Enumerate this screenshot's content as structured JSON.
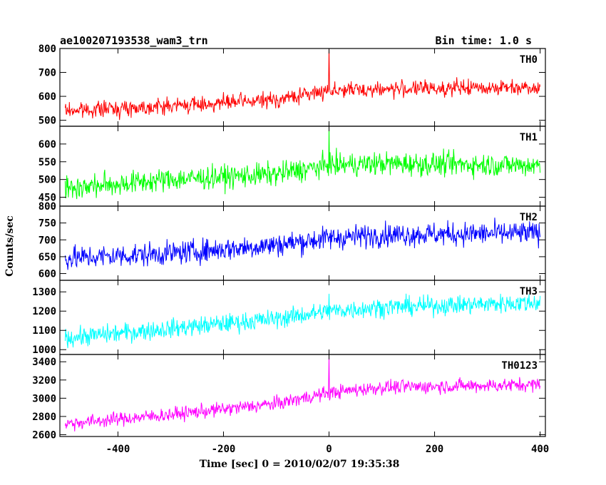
{
  "header": {
    "title": "ae100207193538_wam3_trn",
    "bin_time": "Bin time: 1.0 s"
  },
  "chart_data": {
    "type": "line",
    "xlabel": "Time [sec] 0 = 2010/02/07 19:35:38",
    "ylabel": "Counts/sec",
    "xlim": [
      -510,
      410
    ],
    "xticks": [
      -400,
      -200,
      0,
      200,
      400
    ],
    "x_range": [
      -500,
      400
    ],
    "bin": 1.0,
    "grid": false,
    "panels": [
      {
        "name": "TH0",
        "color": "#ff0000",
        "ylim": [
          475,
          800
        ],
        "yticks": [
          500,
          600,
          700,
          800
        ],
        "trend": [
          [
            -500,
            540
          ],
          [
            -300,
            560
          ],
          [
            -100,
            585
          ],
          [
            0,
            625
          ],
          [
            100,
            630
          ],
          [
            400,
            640
          ]
        ],
        "noise": 30,
        "spikes": [
          [
            0,
            810
          ]
        ]
      },
      {
        "name": "TH1",
        "color": "#00ff00",
        "ylim": [
          425,
          650
        ],
        "yticks": [
          450,
          500,
          550,
          600
        ],
        "trend": [
          [
            -500,
            475
          ],
          [
            -300,
            500
          ],
          [
            -100,
            515
          ],
          [
            0,
            540
          ],
          [
            100,
            545
          ],
          [
            400,
            540
          ]
        ],
        "noise": 30,
        "spikes": [
          [
            0,
            648
          ]
        ]
      },
      {
        "name": "TH2",
        "color": "#0000ff",
        "ylim": [
          580,
          800
        ],
        "yticks": [
          600,
          650,
          700,
          750,
          800
        ],
        "trend": [
          [
            -500,
            645
          ],
          [
            -300,
            660
          ],
          [
            -100,
            685
          ],
          [
            0,
            705
          ],
          [
            100,
            715
          ],
          [
            400,
            720
          ]
        ],
        "noise": 32,
        "spikes": []
      },
      {
        "name": "TH3",
        "color": "#00ffff",
        "ylim": [
          975,
          1360
        ],
        "yticks": [
          1000,
          1100,
          1200,
          1300
        ],
        "trend": [
          [
            -500,
            1060
          ],
          [
            -300,
            1110
          ],
          [
            -100,
            1160
          ],
          [
            0,
            1200
          ],
          [
            100,
            1220
          ],
          [
            400,
            1245
          ]
        ],
        "noise": 45,
        "spikes": [
          [
            0,
            1290
          ]
        ]
      },
      {
        "name": "TH0123",
        "color": "#ff00ff",
        "ylim": [
          2580,
          3480
        ],
        "yticks": [
          2600,
          2800,
          3000,
          3200,
          3400
        ],
        "trend": [
          [
            -500,
            2720
          ],
          [
            -300,
            2820
          ],
          [
            -100,
            2940
          ],
          [
            0,
            3060
          ],
          [
            100,
            3120
          ],
          [
            400,
            3150
          ]
        ],
        "noise": 70,
        "spikes": [
          [
            0,
            3480
          ]
        ]
      }
    ]
  }
}
